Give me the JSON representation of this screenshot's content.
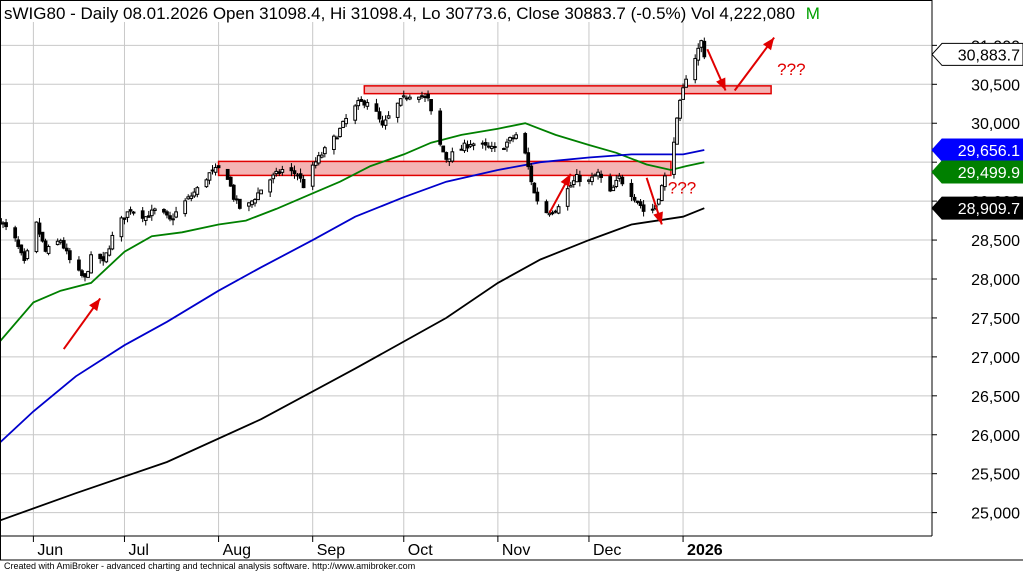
{
  "header": {
    "text": "sWIG80 - Daily 08.01.2026 Open 31098.4, Hi 31098.4, Lo 30773.6, Close 30883.7 (-0.5%) Vol 4,222,080",
    "mark": "M"
  },
  "footer": {
    "text": "Created with AmiBroker - advanced charting and technical analysis software. http://www.amibroker.com"
  },
  "colors": {
    "background": "#ffffff",
    "grid": "#c8c8c8",
    "price": "#000000",
    "ma_short": "#008000",
    "ma_mid": "#0000cc",
    "ma_long": "#000000",
    "zone_fill": "#f4b4b4",
    "zone_stroke": "#e00000",
    "annotation": "#e00000",
    "title_text": "#000000",
    "title_mark": "#00a000"
  },
  "chart_data": {
    "type": "candlestick",
    "title": "sWIG80 - Daily 08.01.2026",
    "xlabel": "",
    "ylabel": "",
    "grid": true,
    "ylim": [
      24700,
      31300
    ],
    "y_ticks": [
      25000,
      25500,
      26000,
      26500,
      27000,
      27500,
      28000,
      28500,
      29000,
      29500,
      30000,
      30500,
      31000
    ],
    "y_tick_labels": [
      "25,000",
      "25,500",
      "26,000",
      "26,500",
      "27,000",
      "27,500",
      "28,000",
      "28,500",
      "29,000",
      "29,500",
      "30,000",
      "30,500",
      "31,000"
    ],
    "x_range": [
      "2025-05-21",
      "2026-03-24"
    ],
    "month_ticks": [
      {
        "date": "2025-06-01",
        "label": "Jun"
      },
      {
        "date": "2025-07-01",
        "label": "Jul"
      },
      {
        "date": "2025-08-01",
        "label": "Aug"
      },
      {
        "date": "2025-09-01",
        "label": "Sep"
      },
      {
        "date": "2025-10-01",
        "label": "Oct"
      },
      {
        "date": "2025-11-01",
        "label": "Nov"
      },
      {
        "date": "2025-12-01",
        "label": "Dec"
      },
      {
        "date": "2026-01-01",
        "label": "2026"
      }
    ],
    "value_labels": [
      {
        "value": 30883.7,
        "label": "30,883.7",
        "bg": "#ffffff",
        "fg": "#000000"
      },
      {
        "value": 29656.1,
        "label": "29,656.1",
        "bg": "#0000ff",
        "fg": "#ffffff"
      },
      {
        "value": 29499.9,
        "label": "29,499.9",
        "bg": "#008000",
        "fg": "#ffffff"
      },
      {
        "value": 28909.7,
        "label": "28,909.7",
        "bg": "#000000",
        "fg": "#ffffff"
      }
    ],
    "close_path": [
      [
        "2025-05-21",
        28750
      ],
      [
        "2025-05-26",
        28500
      ],
      [
        "2025-05-29",
        28200
      ],
      [
        "2025-06-02",
        28700
      ],
      [
        "2025-06-05",
        28350
      ],
      [
        "2025-06-10",
        28500
      ],
      [
        "2025-06-14",
        28150
      ],
      [
        "2025-06-18",
        28000
      ],
      [
        "2025-06-21",
        28400
      ],
      [
        "2025-06-24",
        28200
      ],
      [
        "2025-06-28",
        28650
      ],
      [
        "2025-07-03",
        28900
      ],
      [
        "2025-07-08",
        28800
      ],
      [
        "2025-07-12",
        28900
      ],
      [
        "2025-07-16",
        28750
      ],
      [
        "2025-07-20",
        28950
      ],
      [
        "2025-07-25",
        29150
      ],
      [
        "2025-07-29",
        29350
      ],
      [
        "2025-08-03",
        29450
      ],
      [
        "2025-08-06",
        29050
      ],
      [
        "2025-08-09",
        28850
      ],
      [
        "2025-08-13",
        29050
      ],
      [
        "2025-08-17",
        29250
      ],
      [
        "2025-08-22",
        29400
      ],
      [
        "2025-08-27",
        29350
      ],
      [
        "2025-08-29",
        29200
      ],
      [
        "2025-09-02",
        29500
      ],
      [
        "2025-09-05",
        29650
      ],
      [
        "2025-09-09",
        29850
      ],
      [
        "2025-09-12",
        30050
      ],
      [
        "2025-09-16",
        30250
      ],
      [
        "2025-09-20",
        30300
      ],
      [
        "2025-09-24",
        29950
      ],
      [
        "2025-09-28",
        30200
      ],
      [
        "2025-10-02",
        30350
      ],
      [
        "2025-10-05",
        30400
      ],
      [
        "2025-10-09",
        30300
      ],
      [
        "2025-10-12",
        29800
      ],
      [
        "2025-10-15",
        29550
      ],
      [
        "2025-10-19",
        29650
      ],
      [
        "2025-10-23",
        29750
      ],
      [
        "2025-10-27",
        29700
      ],
      [
        "2025-11-01",
        29650
      ],
      [
        "2025-11-04",
        29750
      ],
      [
        "2025-11-07",
        29850
      ],
      [
        "2025-11-10",
        29600
      ],
      [
        "2025-11-13",
        29100
      ],
      [
        "2025-11-16",
        28850
      ],
      [
        "2025-11-20",
        28900
      ],
      [
        "2025-11-24",
        29150
      ],
      [
        "2025-11-27",
        29300
      ],
      [
        "2025-12-01",
        29250
      ],
      [
        "2025-12-04",
        29350
      ],
      [
        "2025-12-08",
        29100
      ],
      [
        "2025-12-11",
        29300
      ],
      [
        "2025-12-15",
        29100
      ],
      [
        "2025-12-18",
        28950
      ],
      [
        "2025-12-20",
        28800
      ],
      [
        "2025-12-23",
        28950
      ],
      [
        "2025-12-26",
        29300
      ],
      [
        "2025-12-29",
        29800
      ],
      [
        "2025-12-31",
        30250
      ],
      [
        "2026-01-02",
        30600
      ],
      [
        "2026-01-05",
        30850
      ],
      [
        "2026-01-07",
        31050
      ],
      [
        "2026-01-08",
        30883.7
      ]
    ],
    "series": [
      {
        "type": "ma",
        "color": "#008000",
        "points": [
          [
            "2025-05-21",
            27200
          ],
          [
            "2025-06-01",
            27700
          ],
          [
            "2025-06-10",
            27850
          ],
          [
            "2025-06-20",
            27950
          ],
          [
            "2025-07-01",
            28350
          ],
          [
            "2025-07-10",
            28550
          ],
          [
            "2025-07-20",
            28600
          ],
          [
            "2025-08-01",
            28700
          ],
          [
            "2025-08-10",
            28750
          ],
          [
            "2025-08-20",
            28900
          ],
          [
            "2025-09-01",
            29100
          ],
          [
            "2025-09-10",
            29250
          ],
          [
            "2025-09-20",
            29450
          ],
          [
            "2025-10-01",
            29600
          ],
          [
            "2025-10-10",
            29750
          ],
          [
            "2025-10-20",
            29850
          ],
          [
            "2025-11-01",
            29930
          ],
          [
            "2025-11-10",
            30000
          ],
          [
            "2025-11-20",
            29850
          ],
          [
            "2025-12-01",
            29720
          ],
          [
            "2025-12-10",
            29620
          ],
          [
            "2025-12-20",
            29470
          ],
          [
            "2025-12-28",
            29400
          ],
          [
            "2026-01-02",
            29450
          ],
          [
            "2026-01-08",
            29499.9
          ]
        ]
      },
      {
        "type": "ma",
        "color": "#0000cc",
        "points": [
          [
            "2025-05-21",
            25900
          ],
          [
            "2025-06-01",
            26300
          ],
          [
            "2025-06-15",
            26750
          ],
          [
            "2025-07-01",
            27150
          ],
          [
            "2025-07-15",
            27450
          ],
          [
            "2025-08-01",
            27850
          ],
          [
            "2025-08-15",
            28150
          ],
          [
            "2025-09-01",
            28500
          ],
          [
            "2025-09-15",
            28800
          ],
          [
            "2025-10-01",
            29050
          ],
          [
            "2025-10-15",
            29250
          ],
          [
            "2025-11-01",
            29400
          ],
          [
            "2025-11-15",
            29500
          ],
          [
            "2025-12-01",
            29560
          ],
          [
            "2025-12-15",
            29600
          ],
          [
            "2026-01-01",
            29600
          ],
          [
            "2026-01-08",
            29656.1
          ]
        ]
      },
      {
        "type": "ma",
        "color": "#000000",
        "points": [
          [
            "2025-05-21",
            24900
          ],
          [
            "2025-06-15",
            25250
          ],
          [
            "2025-07-15",
            25650
          ],
          [
            "2025-08-15",
            26200
          ],
          [
            "2025-09-15",
            26850
          ],
          [
            "2025-10-15",
            27500
          ],
          [
            "2025-11-01",
            27950
          ],
          [
            "2025-11-15",
            28250
          ],
          [
            "2025-12-01",
            28500
          ],
          [
            "2025-12-15",
            28700
          ],
          [
            "2026-01-01",
            28800
          ],
          [
            "2026-01-08",
            28909.7
          ]
        ]
      }
    ],
    "zones": [
      {
        "from": "2025-09-18",
        "to": "2026-01-30",
        "low": 30380,
        "high": 30480
      },
      {
        "from": "2025-08-01",
        "to": "2025-12-28",
        "low": 29330,
        "high": 29510
      }
    ],
    "arrows": [
      {
        "from": [
          "2025-06-11",
          27100
        ],
        "to": [
          "2025-06-23",
          27750
        ]
      },
      {
        "from": [
          "2025-11-18",
          28850
        ],
        "to": [
          "2025-11-25",
          29350
        ]
      },
      {
        "from": [
          "2025-12-20",
          29300
        ],
        "to": [
          "2025-12-25",
          28700
        ]
      },
      {
        "from": [
          "2026-01-09",
          30950
        ],
        "to": [
          "2026-01-15",
          30420
        ]
      },
      {
        "from": [
          "2026-01-18",
          30420
        ],
        "to": [
          "2026-01-31",
          31100
        ]
      }
    ],
    "annotations": [
      {
        "text": "???",
        "at": [
          "2025-12-27",
          29100
        ]
      },
      {
        "text": "???",
        "at": [
          "2026-02-01",
          30620
        ]
      }
    ]
  }
}
